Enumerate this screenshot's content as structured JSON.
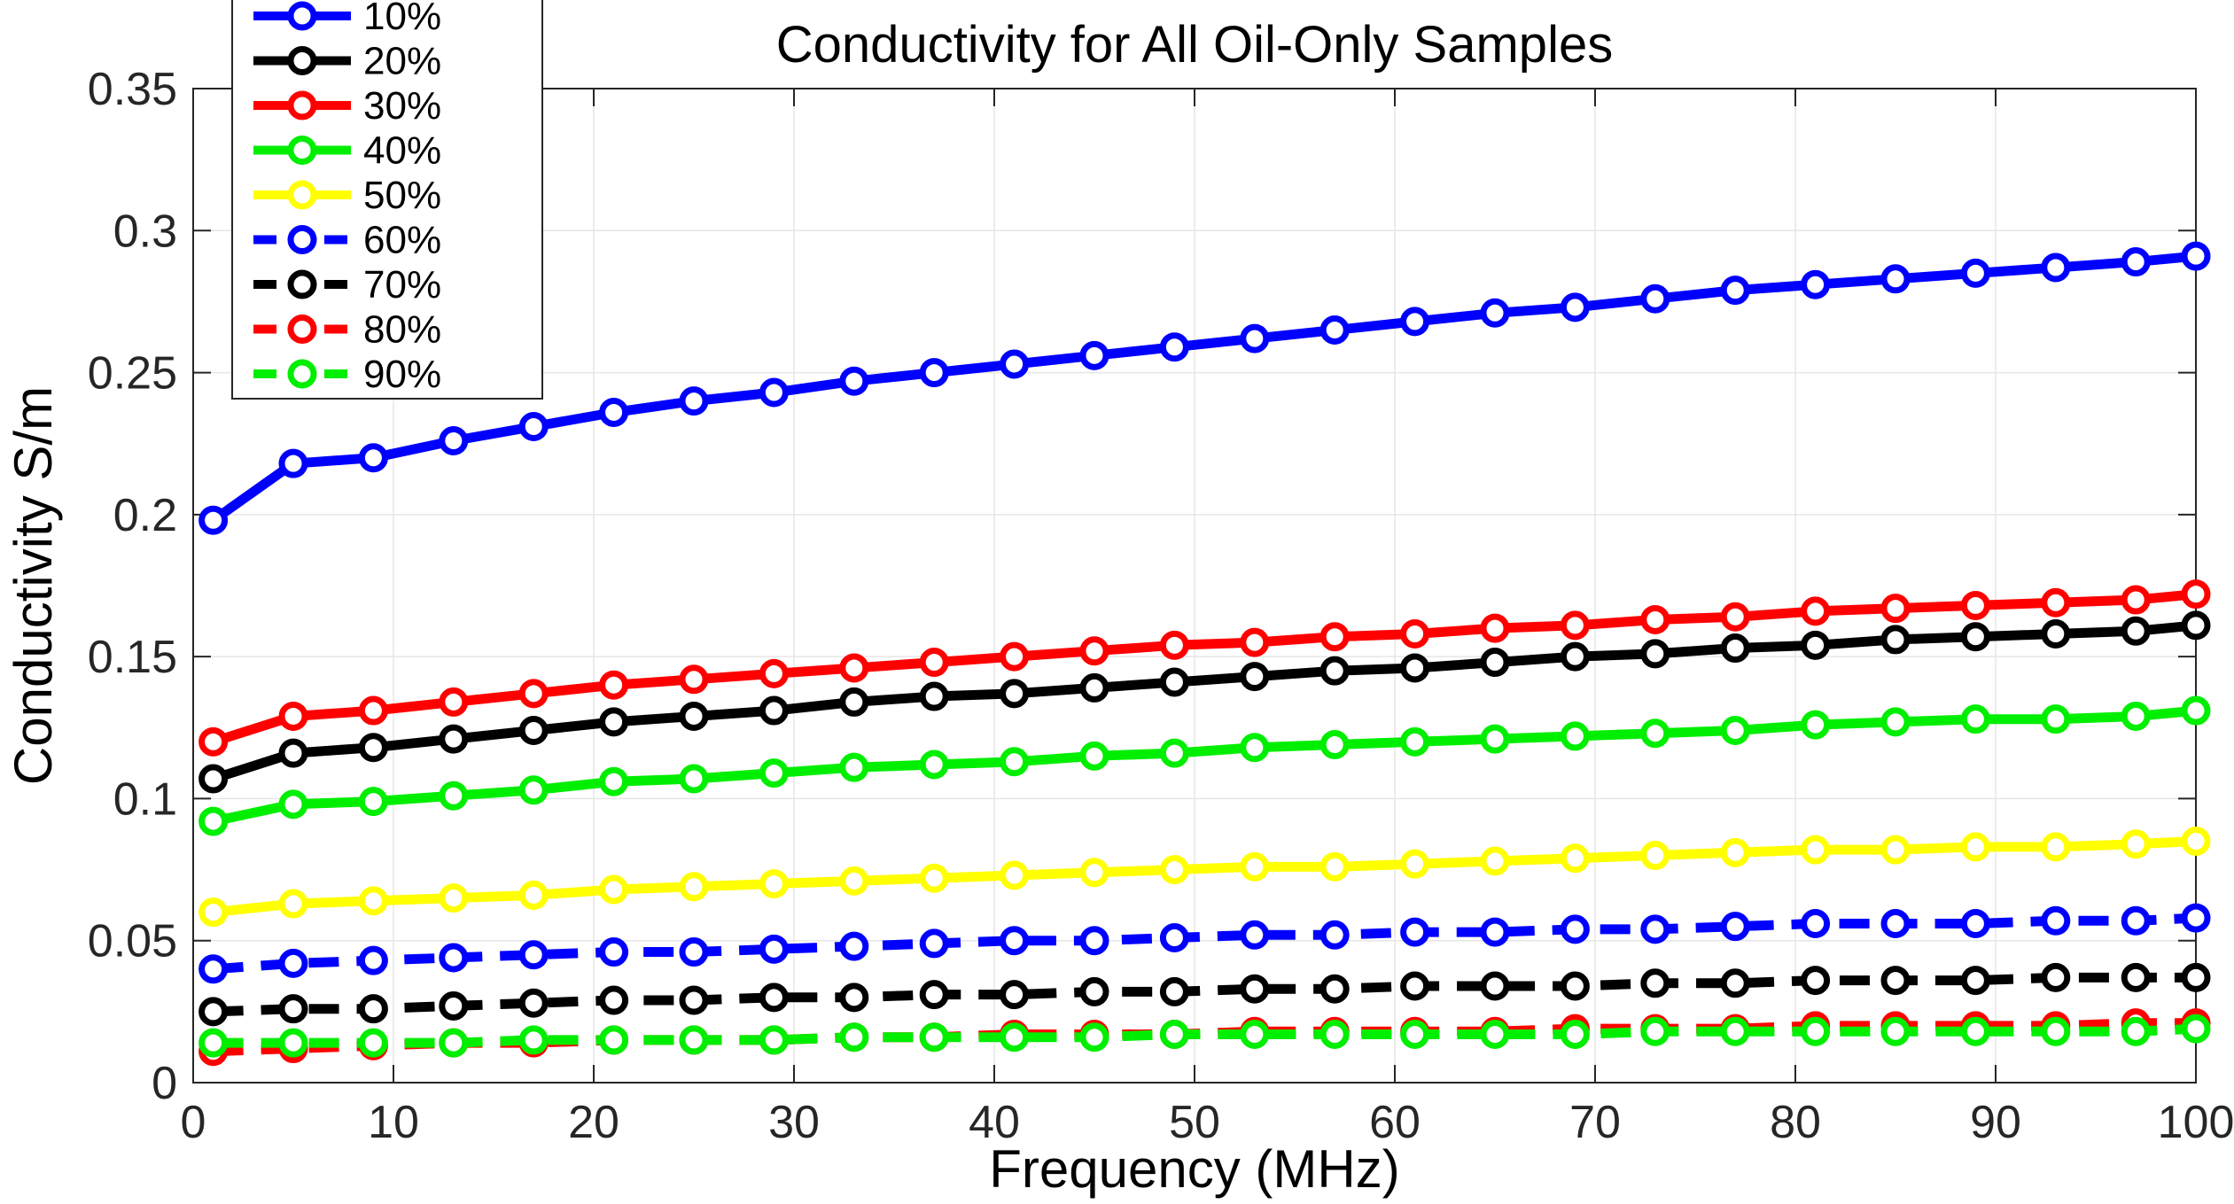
{
  "chart_data": {
    "type": "line",
    "title": "Conductivity for All Oil-Only Samples",
    "xlabel": "Frequency (MHz)",
    "ylabel": "Conductivity S/m",
    "xlim": [
      0,
      100
    ],
    "ylim": [
      0,
      0.35
    ],
    "xticks": [
      0,
      10,
      20,
      30,
      40,
      50,
      60,
      70,
      80,
      90,
      100
    ],
    "xtick_labels": [
      "0",
      "10",
      "20",
      "30",
      "40",
      "50",
      "60",
      "70",
      "80",
      "90",
      "100"
    ],
    "yticks": [
      0,
      0.05,
      0.1,
      0.15,
      0.2,
      0.25,
      0.3,
      0.35
    ],
    "ytick_labels": [
      "0",
      "0.05",
      "0.1",
      "0.15",
      "0.2",
      "0.25",
      "0.3",
      "0.35"
    ],
    "grid": true,
    "legend_position": "top-left",
    "x": [
      1,
      5,
      9,
      13,
      17,
      21,
      25,
      29,
      33,
      37,
      41,
      45,
      49,
      53,
      57,
      61,
      65,
      69,
      73,
      77,
      81,
      85,
      89,
      93,
      97,
      100
    ],
    "series": [
      {
        "name": "10%",
        "color": "#0000ff",
        "style": "solid",
        "values": [
          0.198,
          0.218,
          0.22,
          0.226,
          0.231,
          0.236,
          0.24,
          0.243,
          0.247,
          0.25,
          0.253,
          0.256,
          0.259,
          0.262,
          0.265,
          0.268,
          0.271,
          0.273,
          0.276,
          0.279,
          0.281,
          0.283,
          0.285,
          0.287,
          0.289,
          0.291
        ]
      },
      {
        "name": "20%",
        "color": "#000000",
        "style": "solid",
        "values": [
          0.107,
          0.116,
          0.118,
          0.121,
          0.124,
          0.127,
          0.129,
          0.131,
          0.134,
          0.136,
          0.137,
          0.139,
          0.141,
          0.143,
          0.145,
          0.146,
          0.148,
          0.15,
          0.151,
          0.153,
          0.154,
          0.156,
          0.157,
          0.158,
          0.159,
          0.161
        ]
      },
      {
        "name": "30%",
        "color": "#ff0000",
        "style": "solid",
        "values": [
          0.12,
          0.129,
          0.131,
          0.134,
          0.137,
          0.14,
          0.142,
          0.144,
          0.146,
          0.148,
          0.15,
          0.152,
          0.154,
          0.155,
          0.157,
          0.158,
          0.16,
          0.161,
          0.163,
          0.164,
          0.166,
          0.167,
          0.168,
          0.169,
          0.17,
          0.172
        ]
      },
      {
        "name": "40%",
        "color": "#00ee00",
        "style": "solid",
        "values": [
          0.092,
          0.098,
          0.099,
          0.101,
          0.103,
          0.106,
          0.107,
          0.109,
          0.111,
          0.112,
          0.113,
          0.115,
          0.116,
          0.118,
          0.119,
          0.12,
          0.121,
          0.122,
          0.123,
          0.124,
          0.126,
          0.127,
          0.128,
          0.128,
          0.129,
          0.131
        ]
      },
      {
        "name": "50%",
        "color": "#ffff00",
        "style": "solid",
        "values": [
          0.06,
          0.063,
          0.064,
          0.065,
          0.066,
          0.068,
          0.069,
          0.07,
          0.071,
          0.072,
          0.073,
          0.074,
          0.075,
          0.076,
          0.076,
          0.077,
          0.078,
          0.079,
          0.08,
          0.081,
          0.082,
          0.082,
          0.083,
          0.083,
          0.084,
          0.085
        ]
      },
      {
        "name": "60%",
        "color": "#0000ff",
        "style": "dashed",
        "values": [
          0.04,
          0.042,
          0.043,
          0.044,
          0.045,
          0.046,
          0.046,
          0.047,
          0.048,
          0.049,
          0.05,
          0.05,
          0.051,
          0.052,
          0.052,
          0.053,
          0.053,
          0.054,
          0.054,
          0.055,
          0.056,
          0.056,
          0.056,
          0.057,
          0.057,
          0.058
        ]
      },
      {
        "name": "70%",
        "color": "#000000",
        "style": "dashed",
        "values": [
          0.025,
          0.026,
          0.026,
          0.027,
          0.028,
          0.029,
          0.029,
          0.03,
          0.03,
          0.031,
          0.031,
          0.032,
          0.032,
          0.033,
          0.033,
          0.034,
          0.034,
          0.034,
          0.035,
          0.035,
          0.036,
          0.036,
          0.036,
          0.037,
          0.037,
          0.037
        ]
      },
      {
        "name": "80%",
        "color": "#ff0000",
        "style": "dashed",
        "values": [
          0.011,
          0.012,
          0.013,
          0.014,
          0.014,
          0.015,
          0.015,
          0.015,
          0.016,
          0.016,
          0.017,
          0.017,
          0.017,
          0.018,
          0.018,
          0.018,
          0.018,
          0.019,
          0.019,
          0.019,
          0.02,
          0.02,
          0.02,
          0.02,
          0.021,
          0.021
        ]
      },
      {
        "name": "90%",
        "color": "#00ee00",
        "style": "dashed",
        "values": [
          0.014,
          0.014,
          0.014,
          0.014,
          0.015,
          0.015,
          0.015,
          0.015,
          0.016,
          0.016,
          0.016,
          0.016,
          0.017,
          0.017,
          0.017,
          0.017,
          0.017,
          0.017,
          0.018,
          0.018,
          0.018,
          0.018,
          0.018,
          0.018,
          0.018,
          0.019
        ]
      }
    ]
  }
}
